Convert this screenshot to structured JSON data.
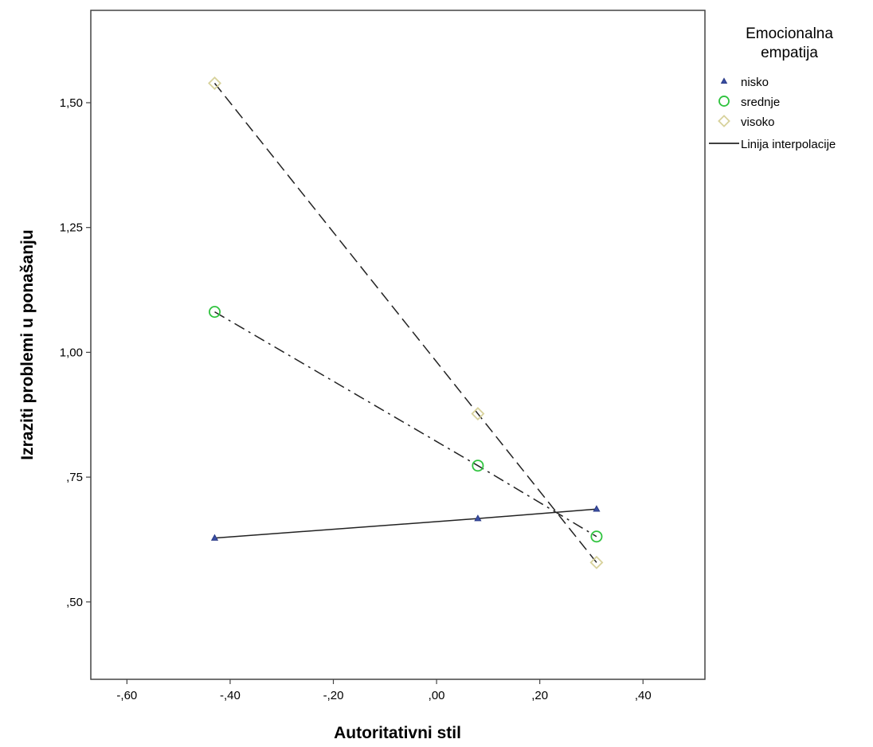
{
  "chart_data": {
    "type": "line",
    "xlabel": "Autoritativni stil",
    "ylabel": "Izraziti problemi u ponašanju",
    "xlim": [
      -0.67,
      0.52
    ],
    "ylim": [
      0.345,
      1.685
    ],
    "xticks": [
      -0.6,
      -0.4,
      -0.2,
      0.0,
      0.2,
      0.4
    ],
    "xtick_labels": [
      "-,60",
      "-,40",
      "-,20",
      ",00",
      ",20",
      ",40"
    ],
    "yticks": [
      0.5,
      0.75,
      1.0,
      1.25,
      1.5
    ],
    "ytick_labels": [
      ",50",
      ",75",
      "1,00",
      "1,25",
      "1,50"
    ],
    "grid": false,
    "legend": {
      "title_line1": "Emocionalna",
      "title_line2": "empatija",
      "placement": "right",
      "interpolation_label": "Linija interpolacije"
    },
    "series": [
      {
        "name": "nisko",
        "marker": "triangle",
        "dash": "solid",
        "color": "#3a4fa3",
        "x": [
          -0.43,
          0.08,
          0.31
        ],
        "y": [
          0.628,
          0.667,
          0.686
        ]
      },
      {
        "name": "srednje",
        "marker": "circle",
        "dash": "dashdot",
        "color": "#2fc33e",
        "x": [
          -0.43,
          0.08,
          0.31
        ],
        "y": [
          1.081,
          0.773,
          0.631
        ]
      },
      {
        "name": "visoko",
        "marker": "diamond",
        "dash": "dashed",
        "color": "#d8d29c",
        "x": [
          -0.43,
          0.08,
          0.31
        ],
        "y": [
          1.539,
          0.877,
          0.579
        ]
      }
    ]
  }
}
